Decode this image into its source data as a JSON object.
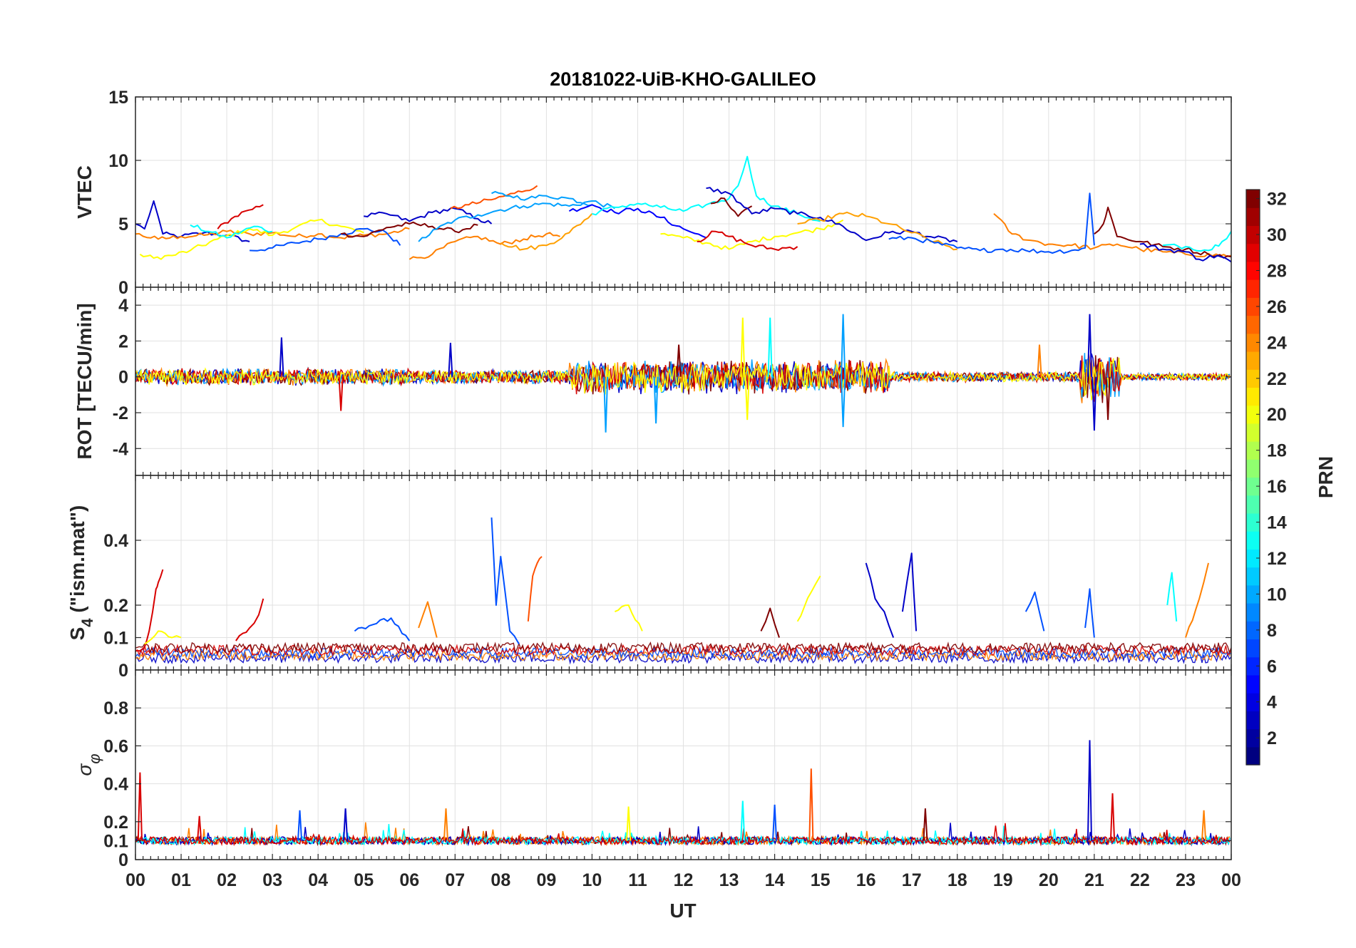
{
  "figure": {
    "title": "20181022-UiB-KHO-GALILEO",
    "xlabel": "UT"
  },
  "chart_data": [
    {
      "type": "line",
      "panel": "VTEC",
      "ylabel": "VTEC",
      "xlim": [
        0,
        24
      ],
      "ylim": [
        0,
        15
      ],
      "yticks": [
        "0",
        "5",
        "10",
        "15"
      ],
      "grid": true,
      "series": [
        {
          "color": "#0000c8",
          "x": [
            0.0,
            0.2,
            0.4,
            0.6,
            1.0,
            1.5,
            2.0,
            2.5
          ],
          "y": [
            5.0,
            4.6,
            6.8,
            4.2,
            4.0,
            4.3,
            4.1,
            3.6
          ]
        },
        {
          "color": "#ff8000",
          "x": [
            0.0,
            0.5,
            1.0,
            1.5,
            2.0,
            2.5,
            3.0,
            3.5,
            4.0,
            4.5,
            5.0,
            5.5,
            6.0
          ],
          "y": [
            4.2,
            3.8,
            4.0,
            4.1,
            4.4,
            4.2,
            4.3,
            4.0,
            4.2,
            3.9,
            4.1,
            4.2,
            4.6
          ]
        },
        {
          "color": "#ffff00",
          "x": [
            0.1,
            0.4,
            0.8,
            1.2,
            1.8,
            2.5,
            3.0,
            3.5,
            4.0,
            4.5,
            5.0
          ],
          "y": [
            2.6,
            2.3,
            2.5,
            2.9,
            3.8,
            4.6,
            4.1,
            4.7,
            5.3,
            4.8,
            4.3
          ]
        },
        {
          "color": "#d80000",
          "x": [
            1.8,
            2.1,
            2.4,
            2.8
          ],
          "y": [
            4.6,
            5.4,
            6.0,
            6.5
          ]
        },
        {
          "color": "#0050ff",
          "x": [
            2.5,
            3.0,
            3.5,
            4.0,
            4.5,
            5.0,
            5.5,
            5.8
          ],
          "y": [
            2.9,
            3.1,
            3.5,
            3.8,
            4.2,
            4.6,
            4.3,
            3.3
          ]
        },
        {
          "color": "#00ffff",
          "x": [
            1.2,
            1.6,
            2.0,
            2.6,
            3.0
          ],
          "y": [
            4.9,
            4.4,
            3.9,
            4.8,
            4.4
          ]
        },
        {
          "color": "#800000",
          "x": [
            4.5,
            5.0,
            5.5,
            6.0,
            6.5,
            7.0,
            7.5
          ],
          "y": [
            4.2,
            4.0,
            4.7,
            5.0,
            4.8,
            4.4,
            4.9
          ]
        },
        {
          "color": "#0000c8",
          "x": [
            5.0,
            5.5,
            6.0,
            6.5,
            7.0,
            7.5,
            7.8
          ],
          "y": [
            5.6,
            5.8,
            5.2,
            5.9,
            6.2,
            5.4,
            5.0
          ]
        },
        {
          "color": "#00a0ff",
          "x": [
            6.2,
            6.6,
            7.0,
            7.5,
            8.0,
            8.5,
            9.0,
            9.5,
            10.0,
            10.5
          ],
          "y": [
            3.6,
            4.6,
            5.3,
            5.7,
            6.1,
            6.4,
            6.6,
            6.4,
            6.8,
            6.2
          ]
        },
        {
          "color": "#ff5000",
          "x": [
            6.9,
            7.3,
            7.8,
            8.3,
            8.8
          ],
          "y": [
            6.2,
            6.5,
            6.9,
            7.4,
            8.0
          ]
        },
        {
          "color": "#ff8000",
          "x": [
            6.0,
            6.5,
            7.0,
            7.5,
            8.0,
            8.5,
            9.0,
            9.3
          ],
          "y": [
            2.2,
            2.6,
            3.6,
            4.0,
            3.4,
            3.8,
            4.2,
            4.0
          ]
        },
        {
          "color": "#00a0ff",
          "x": [
            7.8,
            8.2,
            8.6,
            9.0,
            9.5,
            10.0
          ],
          "y": [
            7.4,
            7.2,
            7.0,
            7.2,
            7.0,
            6.5
          ]
        },
        {
          "color": "#ffa000",
          "x": [
            8.0,
            8.5,
            9.0,
            9.5,
            10.0
          ],
          "y": [
            3.5,
            3.0,
            3.3,
            4.3,
            5.8
          ]
        },
        {
          "color": "#0000ff",
          "x": [
            9.5,
            10.0,
            10.5,
            11.0,
            11.5,
            12.0,
            12.5
          ],
          "y": [
            6.0,
            6.5,
            5.9,
            6.2,
            5.5,
            4.6,
            3.9
          ]
        },
        {
          "color": "#00ffff",
          "x": [
            10.0,
            10.5,
            11.0,
            11.5,
            12.0,
            12.5,
            13.0,
            13.2,
            13.4,
            13.6,
            14.0,
            14.5,
            15.0
          ],
          "y": [
            5.8,
            6.3,
            6.6,
            6.3,
            6.0,
            6.5,
            7.0,
            8.0,
            10.3,
            7.2,
            6.4,
            5.8,
            5.2
          ]
        },
        {
          "color": "#ffff00",
          "x": [
            11.5,
            12.0,
            12.5,
            13.0,
            13.5,
            14.0,
            14.5,
            15.0,
            15.5
          ],
          "y": [
            4.2,
            3.9,
            3.5,
            3.0,
            3.6,
            4.0,
            4.3,
            4.6,
            5.3
          ]
        },
        {
          "color": "#d80000",
          "x": [
            12.3,
            12.7,
            13.0,
            13.5,
            14.0,
            14.5
          ],
          "y": [
            3.6,
            4.4,
            4.0,
            3.3,
            3.0,
            3.2
          ]
        },
        {
          "color": "#800000",
          "x": [
            12.6,
            12.9,
            13.2,
            13.5
          ],
          "y": [
            6.6,
            7.0,
            5.6,
            6.4
          ]
        },
        {
          "color": "#0000c8",
          "x": [
            12.5,
            13.0,
            13.5,
            14.0,
            14.5,
            15.0,
            15.5,
            16.0,
            16.5,
            17.0,
            17.5,
            18.0
          ],
          "y": [
            7.8,
            7.4,
            5.8,
            6.2,
            5.8,
            5.5,
            4.8,
            3.7,
            4.3,
            4.4,
            3.9,
            3.6
          ]
        },
        {
          "color": "#ffa000",
          "x": [
            14.5,
            15.0,
            15.5,
            16.0,
            16.5,
            17.0,
            17.5,
            18.0
          ],
          "y": [
            5.0,
            5.3,
            5.8,
            5.6,
            5.0,
            4.3,
            3.6,
            3.0
          ]
        },
        {
          "color": "#ff8000",
          "x": [
            18.8,
            19.2,
            19.6,
            20.0,
            20.5,
            21.0,
            21.5,
            22.0,
            22.5,
            23.0,
            24.0
          ],
          "y": [
            5.8,
            4.2,
            3.7,
            3.4,
            3.3,
            3.1,
            3.4,
            3.0,
            2.8,
            2.6,
            2.5
          ]
        },
        {
          "color": "#0050ff",
          "x": [
            16.5,
            17.0,
            17.5,
            18.0,
            18.5,
            19.0,
            19.5,
            20.0,
            20.5,
            20.8,
            20.9,
            21.0
          ],
          "y": [
            3.8,
            3.9,
            3.5,
            3.1,
            2.9,
            3.0,
            2.9,
            2.8,
            2.9,
            3.1,
            7.4,
            3.3
          ]
        },
        {
          "color": "#800000",
          "x": [
            21.0,
            21.2,
            21.3,
            21.5,
            22.0,
            22.5,
            23.0,
            23.5,
            24.0
          ],
          "y": [
            4.2,
            5.0,
            6.3,
            4.0,
            3.6,
            3.2,
            3.0,
            2.6,
            2.4
          ]
        },
        {
          "color": "#0000c8",
          "x": [
            22.0,
            22.5,
            23.0,
            23.3,
            23.7,
            24.0
          ],
          "y": [
            3.4,
            3.0,
            2.8,
            2.2,
            2.5,
            2.0
          ]
        },
        {
          "color": "#00ffff",
          "x": [
            22.5,
            23.0,
            23.5,
            23.8,
            24.0
          ],
          "y": [
            3.3,
            3.2,
            2.9,
            3.6,
            4.4
          ]
        }
      ]
    },
    {
      "type": "line",
      "panel": "ROT",
      "ylabel": "ROT [TECU/min]",
      "xlim": [
        0,
        24
      ],
      "ylim": [
        -5.5,
        5
      ],
      "yticks": [
        "-4",
        "-2",
        "0",
        "2",
        "4"
      ],
      "grid": true,
      "noise_bands": [
        {
          "from": 0,
          "to": 6,
          "amp": 0.5
        },
        {
          "from": 6,
          "to": 9.5,
          "amp": 0.4
        },
        {
          "from": 9.5,
          "to": 16.5,
          "amp": 1.0
        },
        {
          "from": 16.5,
          "to": 20.7,
          "amp": 0.3
        },
        {
          "from": 20.7,
          "to": 21.6,
          "amp": 1.5
        },
        {
          "from": 21.6,
          "to": 24,
          "amp": 0.2
        }
      ],
      "spikes": [
        {
          "x": 3.2,
          "y": 2.2,
          "color": "#0000c8"
        },
        {
          "x": 4.5,
          "y": -1.9,
          "color": "#d80000"
        },
        {
          "x": 6.9,
          "y": 1.9,
          "color": "#0000c8"
        },
        {
          "x": 10.3,
          "y": -3.1,
          "color": "#00a0ff"
        },
        {
          "x": 11.4,
          "y": -2.6,
          "color": "#00a0ff"
        },
        {
          "x": 11.9,
          "y": 1.8,
          "color": "#800000"
        },
        {
          "x": 13.3,
          "y": 3.3,
          "color": "#ffff00"
        },
        {
          "x": 13.4,
          "y": -2.4,
          "color": "#ffff00"
        },
        {
          "x": 13.9,
          "y": 3.3,
          "color": "#00ffff"
        },
        {
          "x": 15.5,
          "y": 3.5,
          "color": "#00a0ff"
        },
        {
          "x": 15.5,
          "y": -2.8,
          "color": "#00a0ff"
        },
        {
          "x": 19.8,
          "y": 1.8,
          "color": "#ff8000"
        },
        {
          "x": 20.9,
          "y": 3.5,
          "color": "#0000c8"
        },
        {
          "x": 21.0,
          "y": -3.0,
          "color": "#0000c8"
        },
        {
          "x": 21.3,
          "y": -2.4,
          "color": "#800000"
        }
      ]
    },
    {
      "type": "line",
      "panel": "S4",
      "ylabel": "S4 (\"ism.mat\")",
      "ylabel_main": "S",
      "ylabel_sub": "4",
      "ylabel_tail": " (\"ism.mat\")",
      "xlim": [
        0,
        24
      ],
      "ylim": [
        0,
        0.6
      ],
      "yticks": [
        "0",
        "0.1",
        "0.2",
        "0.4"
      ],
      "grid": true,
      "baseline": 0.05,
      "series": [
        {
          "color": "#d80000",
          "x": [
            0.0,
            0.2,
            0.3,
            0.45,
            0.5,
            0.6
          ],
          "y": [
            0.06,
            0.07,
            0.12,
            0.25,
            0.27,
            0.31
          ]
        },
        {
          "color": "#ffff00",
          "x": [
            0.2,
            0.5,
            0.8,
            1.0
          ],
          "y": [
            0.08,
            0.12,
            0.1,
            0.1
          ]
        },
        {
          "color": "#d80000",
          "x": [
            2.2,
            2.5,
            2.7,
            2.8
          ],
          "y": [
            0.09,
            0.13,
            0.17,
            0.22
          ]
        },
        {
          "color": "#0050ff",
          "x": [
            4.8,
            5.2,
            5.6,
            6.0
          ],
          "y": [
            0.12,
            0.14,
            0.16,
            0.09
          ]
        },
        {
          "color": "#ff8000",
          "x": [
            6.2,
            6.4,
            6.6
          ],
          "y": [
            0.13,
            0.21,
            0.1
          ]
        },
        {
          "color": "#0050ff",
          "x": [
            7.8,
            7.9,
            8.0,
            8.2,
            8.4
          ],
          "y": [
            0.47,
            0.2,
            0.35,
            0.12,
            0.08
          ]
        },
        {
          "color": "#ff5000",
          "x": [
            8.6,
            8.7,
            8.8,
            8.9
          ],
          "y": [
            0.15,
            0.29,
            0.33,
            0.35
          ]
        },
        {
          "color": "#ffff00",
          "x": [
            10.5,
            10.8,
            11.1
          ],
          "y": [
            0.18,
            0.2,
            0.12
          ]
        },
        {
          "color": "#800000",
          "x": [
            13.7,
            13.9,
            14.1
          ],
          "y": [
            0.12,
            0.19,
            0.1
          ]
        },
        {
          "color": "#ffff00",
          "x": [
            14.5,
            14.8,
            15.0
          ],
          "y": [
            0.15,
            0.24,
            0.29
          ]
        },
        {
          "color": "#0000c8",
          "x": [
            16.0,
            16.2,
            16.4,
            16.6
          ],
          "y": [
            0.33,
            0.22,
            0.18,
            0.1
          ]
        },
        {
          "color": "#0000c8",
          "x": [
            16.8,
            17.0,
            17.1
          ],
          "y": [
            0.18,
            0.36,
            0.12
          ]
        },
        {
          "color": "#0050ff",
          "x": [
            19.5,
            19.7,
            19.9
          ],
          "y": [
            0.18,
            0.24,
            0.12
          ]
        },
        {
          "color": "#0050ff",
          "x": [
            20.8,
            20.9,
            21.0
          ],
          "y": [
            0.13,
            0.25,
            0.1
          ]
        },
        {
          "color": "#00ffff",
          "x": [
            22.6,
            22.7,
            22.8
          ],
          "y": [
            0.2,
            0.3,
            0.15
          ]
        },
        {
          "color": "#ff8000",
          "x": [
            23.0,
            23.3,
            23.5
          ],
          "y": [
            0.1,
            0.22,
            0.33
          ]
        }
      ]
    },
    {
      "type": "line",
      "panel": "sigma_phi",
      "ylabel": "σ φ",
      "ylabel_main": "σ",
      "ylabel_sub": "φ",
      "xlim": [
        0,
        24
      ],
      "ylim": [
        0,
        1
      ],
      "yticks": [
        "0",
        "0.1",
        "0.2",
        "0.4",
        "0.6",
        "0.8"
      ],
      "grid": true,
      "baseline": 0.1,
      "spikes": [
        {
          "x": 0.1,
          "y": 0.46,
          "color": "#d80000"
        },
        {
          "x": 1.4,
          "y": 0.23,
          "color": "#d80000"
        },
        {
          "x": 3.6,
          "y": 0.26,
          "color": "#0050ff"
        },
        {
          "x": 4.6,
          "y": 0.27,
          "color": "#0000c8"
        },
        {
          "x": 6.8,
          "y": 0.27,
          "color": "#ff8000"
        },
        {
          "x": 10.8,
          "y": 0.28,
          "color": "#ffff00"
        },
        {
          "x": 13.3,
          "y": 0.31,
          "color": "#00ffff"
        },
        {
          "x": 14.0,
          "y": 0.29,
          "color": "#0050ff"
        },
        {
          "x": 14.8,
          "y": 0.48,
          "color": "#ff5000"
        },
        {
          "x": 17.3,
          "y": 0.27,
          "color": "#800000"
        },
        {
          "x": 20.9,
          "y": 0.63,
          "color": "#0000c8"
        },
        {
          "x": 21.4,
          "y": 0.35,
          "color": "#d80000"
        },
        {
          "x": 23.4,
          "y": 0.26,
          "color": "#ff8000"
        }
      ]
    }
  ],
  "colorbar": {
    "label": "PRN",
    "range": [
      1,
      32
    ],
    "colormap": "jet",
    "ticks": [
      "2",
      "4",
      "6",
      "8",
      "10",
      "12",
      "14",
      "16",
      "18",
      "20",
      "22",
      "24",
      "26",
      "28",
      "30",
      "32"
    ]
  },
  "xaxis": {
    "ticks": [
      "00",
      "01",
      "02",
      "03",
      "04",
      "05",
      "06",
      "07",
      "08",
      "09",
      "10",
      "11",
      "12",
      "13",
      "14",
      "15",
      "16",
      "17",
      "18",
      "19",
      "20",
      "21",
      "22",
      "23",
      "00"
    ]
  }
}
